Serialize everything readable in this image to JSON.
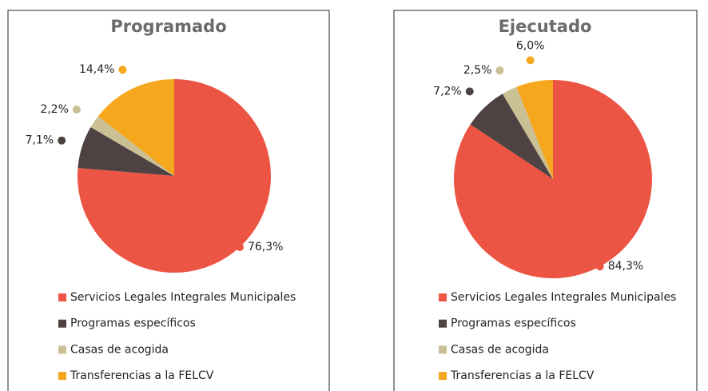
{
  "chart_data": [
    {
      "type": "pie",
      "title": "Programado",
      "categories": [
        "Servicios Legales Integrales Municipales",
        "Programas específicos",
        "Casas de acogida",
        "Transferencias a la FELCV"
      ],
      "values": [
        76.3,
        7.1,
        2.2,
        14.4
      ],
      "value_labels": [
        "76,3%",
        "7,1%",
        "2,2%",
        "14,4%"
      ],
      "colors": [
        "#ec5443",
        "#4f4242",
        "#cabf95",
        "#f5a71d"
      ]
    },
    {
      "type": "pie",
      "title": "Ejecutado",
      "categories": [
        "Servicios Legales Integrales Municipales",
        "Programas específicos",
        "Casas de acogida",
        "Transferencias a la FELCV"
      ],
      "values": [
        84.3,
        7.2,
        2.5,
        6.0
      ],
      "value_labels": [
        "84,3%",
        "7,2%",
        "2,5%",
        "6,0%"
      ],
      "colors": [
        "#ec5443",
        "#4f4242",
        "#cabf95",
        "#f5a71d"
      ]
    }
  ]
}
